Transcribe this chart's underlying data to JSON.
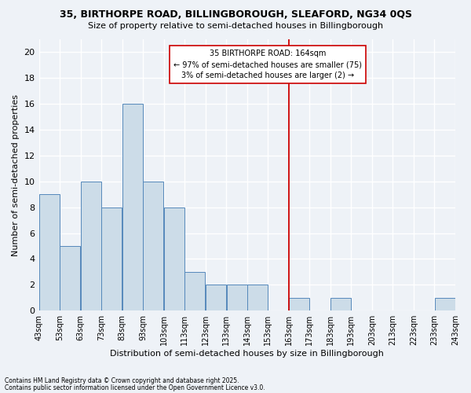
{
  "title": "35, BIRTHORPE ROAD, BILLINGBOROUGH, SLEAFORD, NG34 0QS",
  "subtitle": "Size of property relative to semi-detached houses in Billingborough",
  "xlabel": "Distribution of semi-detached houses by size in Billingborough",
  "ylabel": "Number of semi-detached properties",
  "bins": [
    "43sqm",
    "53sqm",
    "63sqm",
    "73sqm",
    "83sqm",
    "93sqm",
    "103sqm",
    "113sqm",
    "123sqm",
    "133sqm",
    "143sqm",
    "153sqm",
    "163sqm",
    "173sqm",
    "183sqm",
    "193sqm",
    "203sqm",
    "213sqm",
    "223sqm",
    "233sqm",
    "243sqm"
  ],
  "values": [
    9,
    5,
    10,
    8,
    16,
    10,
    8,
    3,
    2,
    2,
    2,
    0,
    1,
    0,
    1,
    0,
    0,
    0,
    0,
    1
  ],
  "bar_color": "#ccdce8",
  "bar_edge_color": "#5588bb",
  "vline_x": 163,
  "vline_color": "#cc0000",
  "annotation_text": "35 BIRTHORPE ROAD: 164sqm\n← 97% of semi-detached houses are smaller (75)\n3% of semi-detached houses are larger (2) →",
  "annotation_box_color": "#ffffff",
  "annotation_box_edge": "#cc0000",
  "ylim": [
    0,
    21
  ],
  "yticks": [
    0,
    2,
    4,
    6,
    8,
    10,
    12,
    14,
    16,
    18,
    20
  ],
  "background_color": "#eef2f7",
  "grid_color": "#ffffff",
  "footnote1": "Contains HM Land Registry data © Crown copyright and database right 2025.",
  "footnote2": "Contains public sector information licensed under the Open Government Licence v3.0."
}
